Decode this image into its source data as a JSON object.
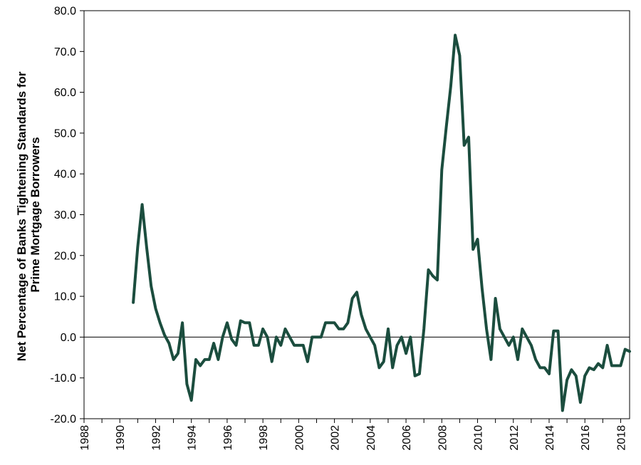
{
  "chart_data": {
    "type": "line",
    "title": "",
    "xlabel": "",
    "ylabel_lines": [
      "Net Percentage of Banks Tightening Standards for",
      "Prime Mortgage Borrowers"
    ],
    "ylim": [
      -20,
      80
    ],
    "xlim": [
      1988,
      2018.5
    ],
    "yticks": [
      "-20.0",
      "-10.0",
      "0.0",
      "10.0",
      "20.0",
      "30.0",
      "40.0",
      "50.0",
      "60.0",
      "70.0",
      "80.0"
    ],
    "xticks": [
      "1988",
      "1990",
      "1992",
      "1994",
      "1996",
      "1998",
      "2000",
      "2002",
      "2004",
      "2006",
      "2008",
      "2010",
      "2012",
      "2014",
      "2016",
      "2018"
    ],
    "grid": false,
    "line_color": "#1b4d3e",
    "series": [
      {
        "x": [
          1990.75,
          1991.0,
          1991.25,
          1991.5,
          1991.75,
          1992.0,
          1992.25,
          1992.5,
          1992.75,
          1993.0,
          1993.25,
          1993.5,
          1993.75,
          1994.0,
          1994.25,
          1994.5,
          1994.75,
          1995.0,
          1995.25,
          1995.5,
          1995.75,
          1996.0,
          1996.25,
          1996.5,
          1996.75,
          1997.0,
          1997.25,
          1997.5,
          1997.75,
          1998.0,
          1998.25,
          1998.5,
          1998.75,
          1999.0,
          1999.25,
          1999.5,
          1999.75,
          2000.0,
          2000.25,
          2000.5,
          2000.75,
          2001.0,
          2001.25,
          2001.5,
          2001.75,
          2002.0,
          2002.25,
          2002.5,
          2002.75,
          2003.0,
          2003.25,
          2003.5,
          2003.75,
          2004.0,
          2004.25,
          2004.5,
          2004.75,
          2005.0,
          2005.25,
          2005.5,
          2005.75,
          2006.0,
          2006.25,
          2006.5,
          2006.75,
          2007.0,
          2007.25,
          2007.5,
          2007.75,
          2008.0,
          2008.25,
          2008.5,
          2008.75,
          2009.0,
          2009.25,
          2009.5,
          2009.75,
          2010.0,
          2010.25,
          2010.5,
          2010.75,
          2011.0,
          2011.25,
          2011.5,
          2011.75,
          2012.0,
          2012.25,
          2012.5,
          2012.75,
          2013.0,
          2013.25,
          2013.5,
          2013.75,
          2014.0,
          2014.25,
          2014.5,
          2014.75,
          2015.0,
          2015.25,
          2015.5,
          2015.75,
          2016.0,
          2016.25,
          2016.5,
          2016.75,
          2017.0,
          2017.25,
          2017.5,
          2017.75,
          2018.0,
          2018.25,
          2018.5
        ],
        "values": [
          8.5,
          22.0,
          32.5,
          22.0,
          12.5,
          7.0,
          3.5,
          0.5,
          -1.5,
          -5.5,
          -4.0,
          3.5,
          -11.5,
          -15.5,
          -5.5,
          -7.0,
          -5.5,
          -5.5,
          -1.5,
          -5.5,
          0.0,
          3.5,
          -0.5,
          -2.0,
          4.0,
          3.5,
          3.5,
          -2.0,
          -2.0,
          2.0,
          0.0,
          -6.0,
          0.0,
          -2.0,
          2.0,
          0.0,
          -2.0,
          -2.0,
          -2.0,
          -6.0,
          0.0,
          0.0,
          0.0,
          3.5,
          3.5,
          3.5,
          2.0,
          2.0,
          3.5,
          9.5,
          11.0,
          5.5,
          2.0,
          0.0,
          -2.0,
          -7.5,
          -6.0,
          2.0,
          -7.5,
          -2.0,
          0.0,
          -4.0,
          0.0,
          -9.5,
          -9.0,
          2.0,
          16.5,
          15.0,
          14.0,
          41.0,
          51.5,
          61.5,
          74.0,
          69.0,
          47.0,
          49.0,
          21.5,
          24.0,
          12.0,
          2.0,
          -5.5,
          9.5,
          2.0,
          0.0,
          -2.0,
          0.0,
          -5.5,
          2.0,
          0.0,
          -2.0,
          -5.5,
          -7.5,
          -7.5,
          -9.0,
          1.5,
          1.5,
          -18.0,
          -10.5,
          -8.0,
          -9.5,
          -16.0,
          -9.5,
          -7.5,
          -8.0,
          -6.5,
          -7.5,
          -2.0,
          -7.0,
          -7.0,
          -7.0,
          -3.0,
          -3.5
        ]
      }
    ]
  }
}
